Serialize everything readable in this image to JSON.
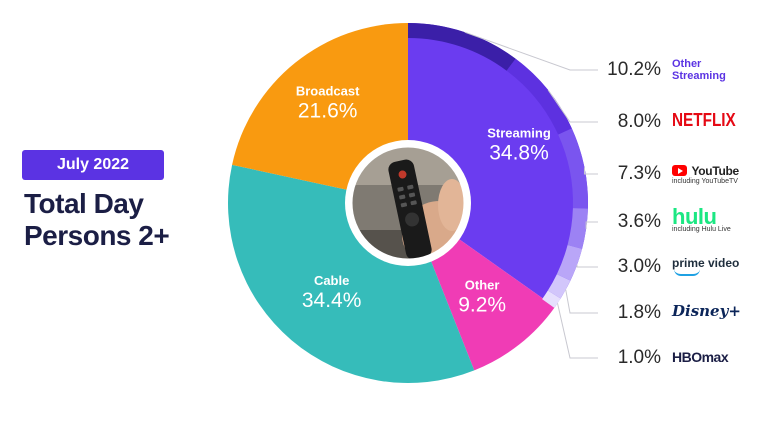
{
  "header": {
    "period_badge": "July 2022",
    "title_line1": "Total Day",
    "title_line2": "Persons 2+"
  },
  "chart_data": {
    "type": "pie",
    "style": "donut",
    "slices": [
      {
        "label": "Streaming",
        "value": 34.8,
        "value_label": "34.8%",
        "color": "#6b3cf0"
      },
      {
        "label": "Other",
        "value": 9.2,
        "value_label": "9.2%",
        "color": "#f03cb5"
      },
      {
        "label": "Cable",
        "value": 34.4,
        "value_label": "34.4%",
        "color": "#36bcba"
      },
      {
        "label": "Broadcast",
        "value": 21.6,
        "value_label": "21.6%",
        "color": "#f99a10"
      }
    ],
    "streaming_breakdown": [
      {
        "name": "Other Streaming",
        "value": 10.2,
        "value_label": "10.2%",
        "color": "#3b1fa8"
      },
      {
        "name": "Netflix",
        "value": 8.0,
        "value_label": "8.0%",
        "color": "#5d31e0"
      },
      {
        "name": "YouTube",
        "note": "including YouTubeTV",
        "value": 7.3,
        "value_label": "7.3%",
        "color": "#7a55ef"
      },
      {
        "name": "Hulu",
        "note": "including Hulu Live",
        "value": 3.6,
        "value_label": "3.6%",
        "color": "#9c82f4"
      },
      {
        "name": "Prime Video",
        "value": 3.0,
        "value_label": "3.0%",
        "color": "#b9a6f8"
      },
      {
        "name": "Disney+",
        "value": 1.8,
        "value_label": "1.8%",
        "color": "#d2c6fb"
      },
      {
        "name": "HBO Max",
        "value": 1.0,
        "value_label": "1.0%",
        "color": "#e6dffd"
      }
    ]
  },
  "legend": {
    "other_streaming_line1": "Other",
    "other_streaming_line2": "Streaming",
    "netflix_logo": "NETFLIX",
    "youtube_logo": "YouTube",
    "youtube_note": "including YouTubeTV",
    "hulu_logo": "hulu",
    "hulu_note": "including Hulu Live",
    "prime_logo": "prime video",
    "disney_logo": "Disney+",
    "hbo_logo": "HBOmax"
  },
  "center_image": {
    "icon": "tv-remote-icon"
  },
  "colors": {
    "brand": "#5b33e3",
    "text_dark": "#1b1e45"
  }
}
